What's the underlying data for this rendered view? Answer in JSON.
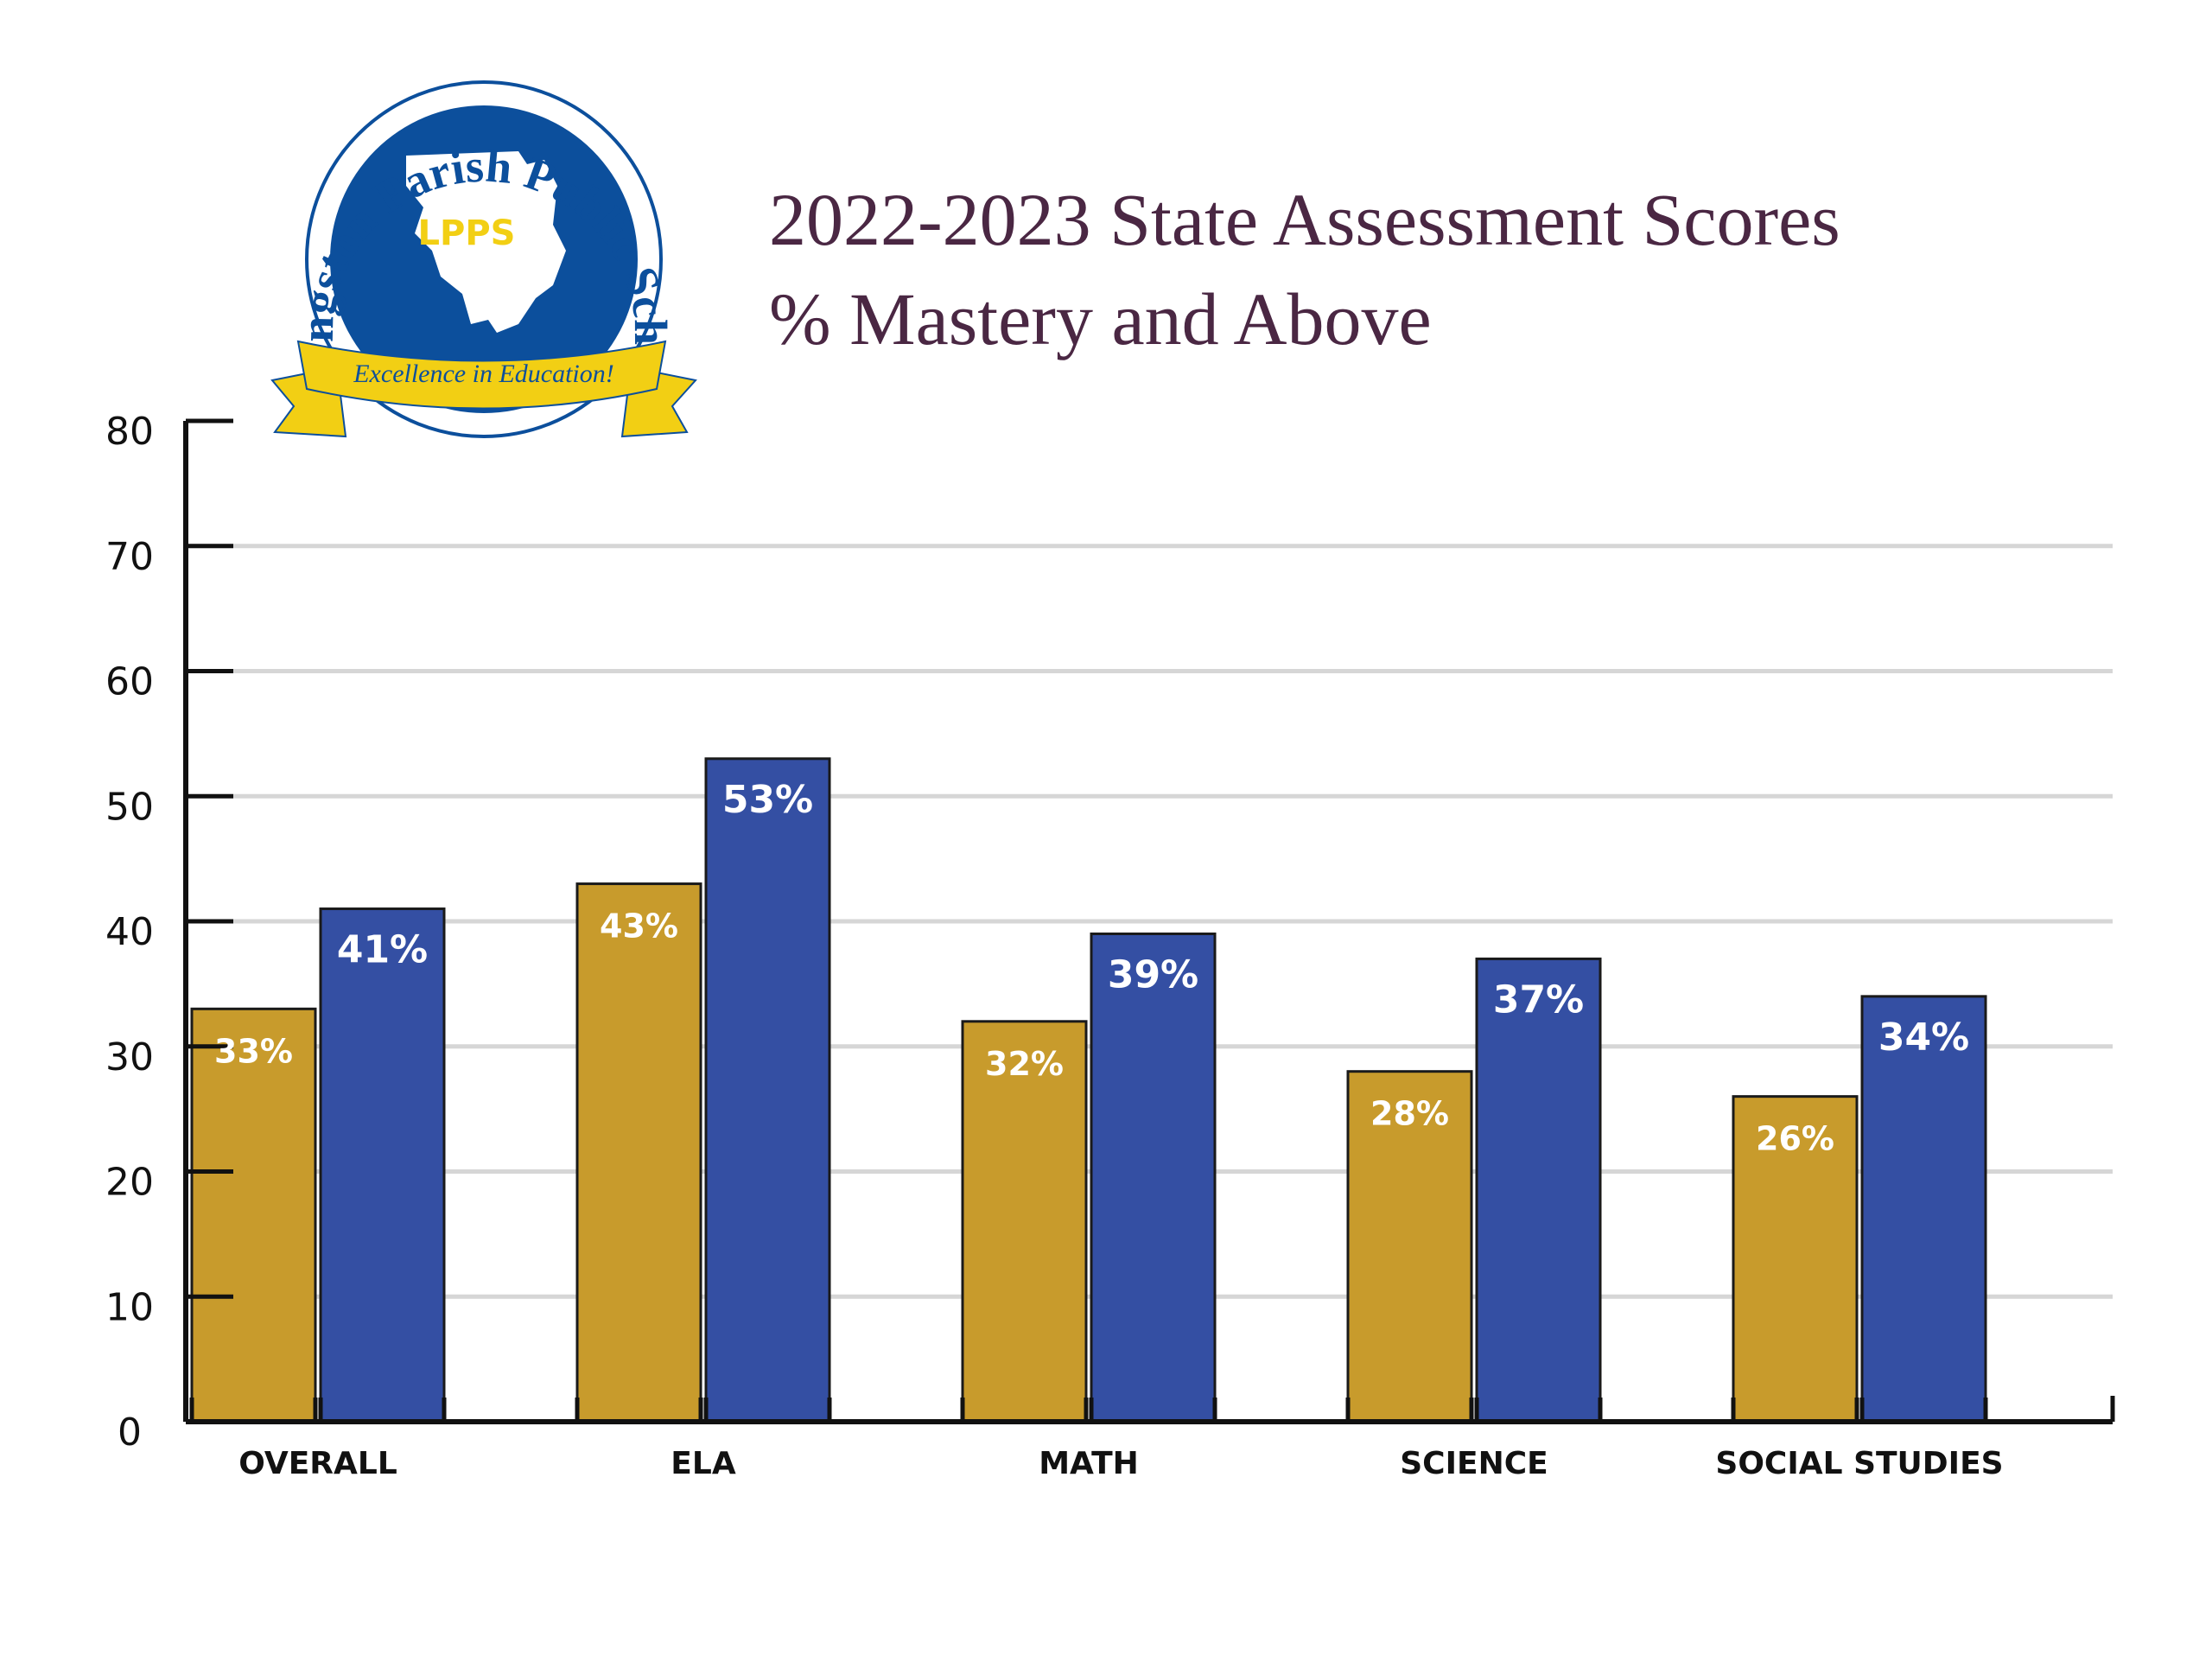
{
  "logo": {
    "arc_text": "Livingston Parish Public Schools",
    "abbr": "LPPS",
    "ribbon_text": "Excellence in Education!"
  },
  "colors": {
    "series_a": "#c89b2c",
    "series_b": "#344fa3",
    "title": "#4a2743",
    "grid": "#d6d6d6",
    "logo_blue": "#0c4f9c",
    "logo_gold": "#f2cf14"
  },
  "chart_data": {
    "type": "bar",
    "title": "2022-2023 State Assessment Scores",
    "subtitle": "% Mastery and Above",
    "categories": [
      "OVERALL",
      "ELA",
      "MATH",
      "SCIENCE",
      "SOCIAL STUDIES"
    ],
    "series": [
      {
        "values": [
          33,
          43,
          32,
          28,
          26
        ],
        "labels": [
          "33%",
          "43%",
          "32%",
          "28%",
          "26%"
        ]
      },
      {
        "values": [
          41,
          53,
          39,
          37,
          34
        ],
        "labels": [
          "41%",
          "53%",
          "39%",
          "37%",
          "34%"
        ]
      }
    ],
    "ylim": [
      0,
      80
    ],
    "yticks": [
      0,
      10,
      20,
      30,
      40,
      50,
      60,
      70,
      80
    ],
    "grid": true,
    "xlabel": "",
    "ylabel": ""
  }
}
